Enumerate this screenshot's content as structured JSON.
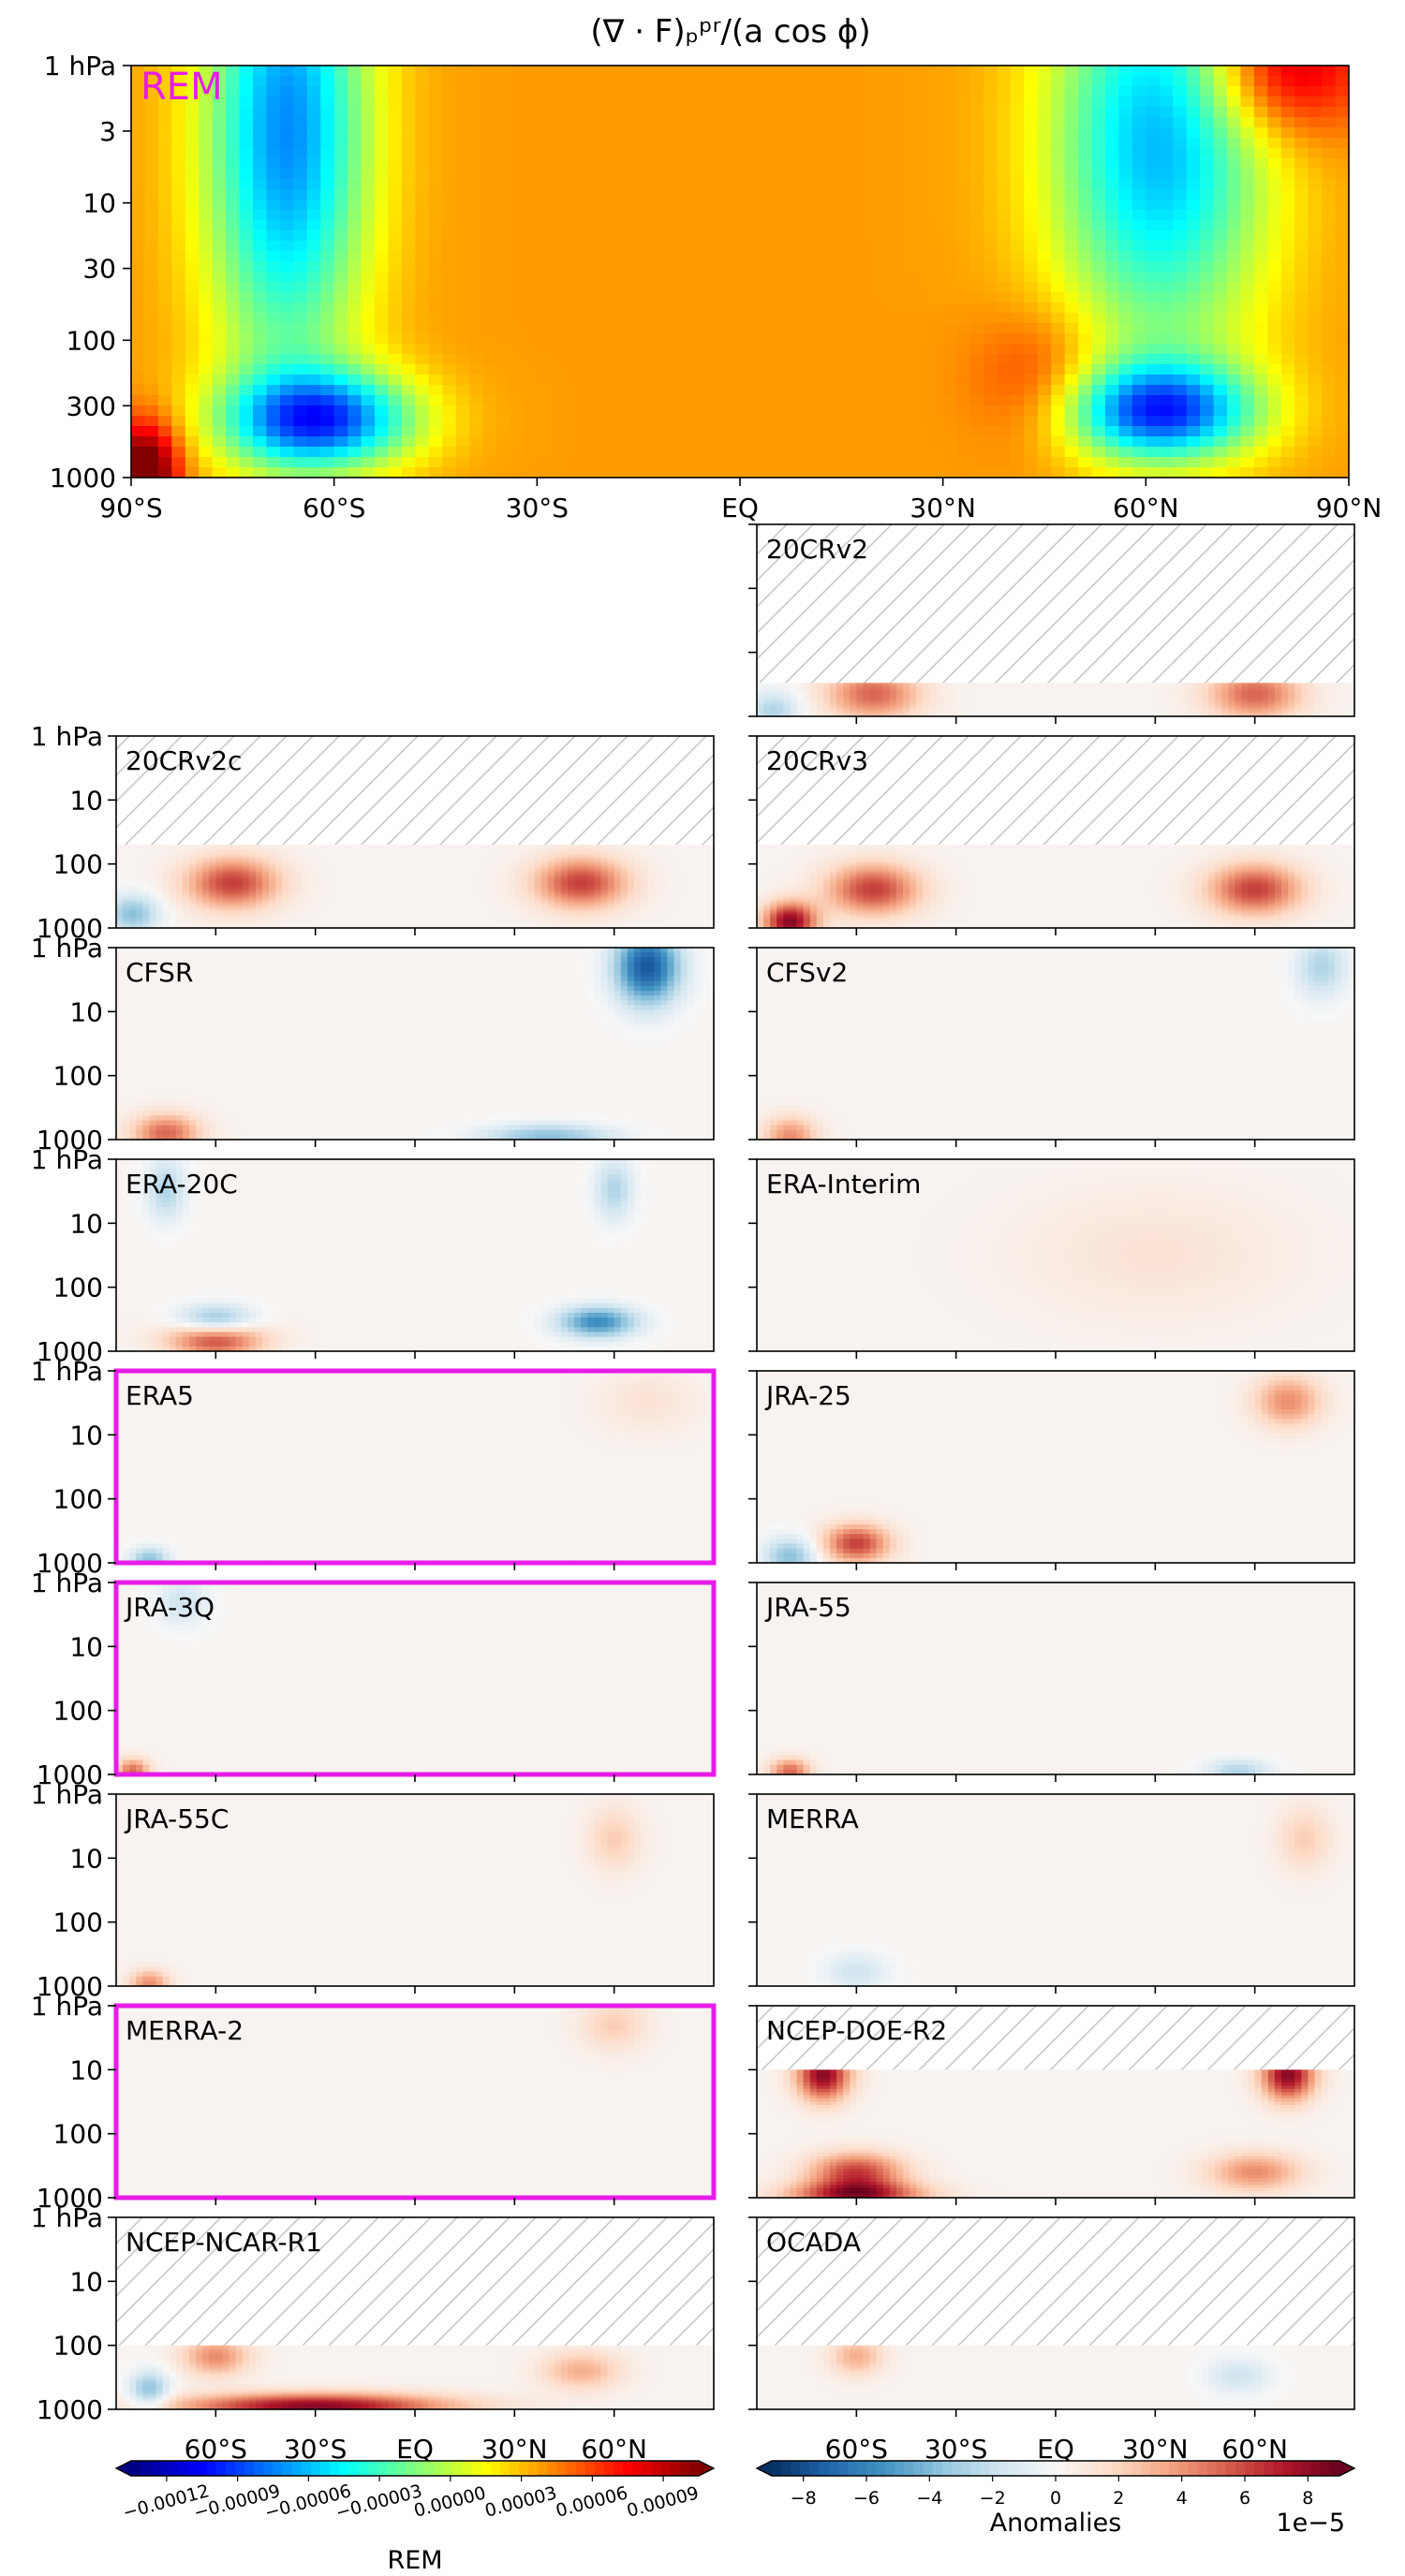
{
  "figure": {
    "title": "(∇ · F)ₚᵖʳ/(a cos ϕ)",
    "hatch_color": "#c8c8c8",
    "highlight_color": "#e81ce8"
  },
  "chart_data": [
    {
      "type": "heatmap",
      "id": "rem",
      "label": "REM",
      "label_color": "#e81ce8",
      "x_ticks": [
        "90°S",
        "60°S",
        "30°S",
        "EQ",
        "30°N",
        "60°N",
        "90°N"
      ],
      "x_tick_values": [
        -90,
        -60,
        -30,
        0,
        30,
        60,
        90
      ],
      "y_ticks": [
        "1 hPa",
        "3",
        "10",
        "30",
        "100",
        "300",
        "1000"
      ],
      "y_tick_values": [
        1,
        3,
        10,
        30,
        100,
        300,
        1000
      ],
      "y_scale": "log",
      "xlim": [
        -90,
        90
      ],
      "ylim": [
        1000,
        1
      ],
      "colormap": "jet",
      "features": [
        {
          "lat": -67,
          "p": 3,
          "value": -0.00011,
          "width": 12,
          "depth": 1.8
        },
        {
          "lat": 62,
          "p": 3.5,
          "value": -0.0001,
          "width": 16,
          "depth": 1.6
        },
        {
          "lat": -62,
          "p": 380,
          "value": -0.00012,
          "width": 14,
          "depth": 0.35
        },
        {
          "lat": 62,
          "p": 330,
          "value": -0.00012,
          "width": 14,
          "depth": 0.35
        },
        {
          "lat": -88,
          "p": 900,
          "value": 9e-05,
          "width": 5,
          "depth": 0.35
        },
        {
          "lat": 80,
          "p": 1,
          "value": 6e-05,
          "width": 12,
          "depth": 0.5
        },
        {
          "lat": 45,
          "p": 200,
          "value": 3e-05,
          "width": 10,
          "depth": 0.5
        }
      ]
    },
    {
      "type": "heatmap",
      "id": "20CRv2",
      "label": "20CRv2",
      "highlight": false,
      "top_p": 300,
      "features": [
        {
          "lat": -55,
          "p": 450,
          "value": 5,
          "width": 14,
          "depth": 0.4
        },
        {
          "lat": 60,
          "p": 450,
          "value": 5,
          "width": 14,
          "depth": 0.4
        },
        {
          "lat": -85,
          "p": 800,
          "value": -3,
          "width": 8,
          "depth": 0.3
        }
      ]
    },
    {
      "type": "heatmap",
      "id": "20CRv2c",
      "label": "20CRv2c",
      "highlight": false,
      "top_p": 50,
      "features": [
        {
          "lat": -55,
          "p": 200,
          "value": 6,
          "width": 14,
          "depth": 0.4
        },
        {
          "lat": 50,
          "p": 200,
          "value": 6,
          "width": 14,
          "depth": 0.4
        },
        {
          "lat": -85,
          "p": 600,
          "value": -4,
          "width": 8,
          "depth": 0.3
        }
      ]
    },
    {
      "type": "heatmap",
      "id": "20CRv3",
      "label": "20CRv3",
      "highlight": false,
      "top_p": 50,
      "features": [
        {
          "lat": -55,
          "p": 250,
          "value": 6,
          "width": 14,
          "depth": 0.4
        },
        {
          "lat": 60,
          "p": 250,
          "value": 6,
          "width": 14,
          "depth": 0.4
        },
        {
          "lat": -80,
          "p": 800,
          "value": 8,
          "width": 8,
          "depth": 0.3
        }
      ]
    },
    {
      "type": "heatmap",
      "id": "CFSR",
      "label": "CFSR",
      "highlight": false,
      "top_p": 1,
      "features": [
        {
          "lat": 70,
          "p": 2,
          "value": -8,
          "width": 10,
          "depth": 0.6
        },
        {
          "lat": -75,
          "p": 800,
          "value": 5,
          "width": 10,
          "depth": 0.3
        },
        {
          "lat": 40,
          "p": 900,
          "value": -4,
          "width": 20,
          "depth": 0.2
        }
      ]
    },
    {
      "type": "heatmap",
      "id": "CFSv2",
      "label": "CFSv2",
      "highlight": false,
      "top_p": 1,
      "features": [
        {
          "lat": 80,
          "p": 2,
          "value": -3,
          "width": 8,
          "depth": 0.5
        },
        {
          "lat": -80,
          "p": 900,
          "value": 4,
          "width": 8,
          "depth": 0.3
        }
      ]
    },
    {
      "type": "heatmap",
      "id": "ERA-20C",
      "label": "ERA-20C",
      "highlight": false,
      "top_p": 1,
      "features": [
        {
          "lat": -75,
          "p": 3,
          "value": -3,
          "width": 6,
          "depth": 0.5
        },
        {
          "lat": 60,
          "p": 3,
          "value": -3,
          "width": 6,
          "depth": 0.5
        },
        {
          "lat": -60,
          "p": 600,
          "value": 7,
          "width": 14,
          "depth": 0.3
        },
        {
          "lat": -60,
          "p": 350,
          "value": -6,
          "width": 12,
          "depth": 0.25
        },
        {
          "lat": 55,
          "p": 350,
          "value": -6,
          "width": 12,
          "depth": 0.25
        }
      ]
    },
    {
      "type": "heatmap",
      "id": "ERA-Interim",
      "label": "ERA-Interim",
      "highlight": false,
      "top_p": 1,
      "features": [
        {
          "lat": 30,
          "p": 30,
          "value": 1,
          "width": 40,
          "depth": 1.0
        }
      ]
    },
    {
      "type": "heatmap",
      "id": "ERA5",
      "label": "ERA5",
      "highlight": true,
      "top_p": 1,
      "features": [
        {
          "lat": -80,
          "p": 900,
          "value": -4,
          "width": 6,
          "depth": 0.2
        },
        {
          "lat": 70,
          "p": 3,
          "value": 1,
          "width": 15,
          "depth": 0.5
        }
      ]
    },
    {
      "type": "heatmap",
      "id": "JRA-25",
      "label": "JRA-25",
      "highlight": false,
      "top_p": 1,
      "features": [
        {
          "lat": 70,
          "p": 3,
          "value": 4,
          "width": 10,
          "depth": 0.4
        },
        {
          "lat": -60,
          "p": 500,
          "value": 6,
          "width": 10,
          "depth": 0.3
        },
        {
          "lat": -80,
          "p": 800,
          "value": -4,
          "width": 8,
          "depth": 0.3
        }
      ]
    },
    {
      "type": "heatmap",
      "id": "JRA-3Q",
      "label": "JRA-3Q",
      "highlight": true,
      "top_p": 1,
      "features": [
        {
          "lat": -85,
          "p": 900,
          "value": 5,
          "width": 5,
          "depth": 0.2
        },
        {
          "lat": -70,
          "p": 2,
          "value": -2,
          "width": 8,
          "depth": 0.4
        }
      ]
    },
    {
      "type": "heatmap",
      "id": "JRA-55",
      "label": "JRA-55",
      "highlight": false,
      "top_p": 1,
      "features": [
        {
          "lat": -80,
          "p": 900,
          "value": 5,
          "width": 6,
          "depth": 0.2
        },
        {
          "lat": 55,
          "p": 900,
          "value": -3,
          "width": 10,
          "depth": 0.2
        }
      ]
    },
    {
      "type": "heatmap",
      "id": "JRA-55C",
      "label": "JRA-55C",
      "highlight": false,
      "top_p": 1,
      "features": [
        {
          "lat": -80,
          "p": 900,
          "value": 4,
          "width": 6,
          "depth": 0.2
        },
        {
          "lat": 60,
          "p": 5,
          "value": 2,
          "width": 8,
          "depth": 0.5
        }
      ]
    },
    {
      "type": "heatmap",
      "id": "MERRA",
      "label": "MERRA",
      "highlight": false,
      "top_p": 1,
      "features": [
        {
          "lat": 75,
          "p": 5,
          "value": 2,
          "width": 8,
          "depth": 0.5
        },
        {
          "lat": -60,
          "p": 600,
          "value": -2,
          "width": 10,
          "depth": 0.3
        }
      ]
    },
    {
      "type": "heatmap",
      "id": "MERRA-2",
      "label": "MERRA-2",
      "highlight": true,
      "top_p": 1,
      "features": [
        {
          "lat": 60,
          "p": 2,
          "value": 2,
          "width": 10,
          "depth": 0.4
        }
      ]
    },
    {
      "type": "heatmap",
      "id": "NCEP-DOE-R2",
      "label": "NCEP-DOE-R2",
      "highlight": false,
      "top_p": 10,
      "features": [
        {
          "lat": -70,
          "p": 12,
          "value": 8,
          "width": 8,
          "depth": 0.4
        },
        {
          "lat": 70,
          "p": 12,
          "value": 8,
          "width": 8,
          "depth": 0.4
        },
        {
          "lat": -60,
          "p": 400,
          "value": 6,
          "width": 14,
          "depth": 0.3
        },
        {
          "lat": 60,
          "p": 400,
          "value": 4,
          "width": 14,
          "depth": 0.3
        },
        {
          "lat": -60,
          "p": 900,
          "value": 7,
          "width": 20,
          "depth": 0.2
        }
      ]
    },
    {
      "type": "heatmap",
      "id": "NCEP-NCAR-R1",
      "label": "NCEP-NCAR-R1",
      "highlight": false,
      "top_p": 100,
      "features": [
        {
          "lat": -60,
          "p": 150,
          "value": 4,
          "width": 10,
          "depth": 0.3
        },
        {
          "lat": 50,
          "p": 250,
          "value": 3,
          "width": 12,
          "depth": 0.3
        },
        {
          "lat": -30,
          "p": 900,
          "value": 8,
          "width": 40,
          "depth": 0.2
        },
        {
          "lat": -80,
          "p": 500,
          "value": -4,
          "width": 6,
          "depth": 0.3
        }
      ]
    },
    {
      "type": "heatmap",
      "id": "OCADA",
      "label": "OCADA",
      "highlight": false,
      "top_p": 100,
      "features": [
        {
          "lat": -60,
          "p": 150,
          "value": 3,
          "width": 8,
          "depth": 0.3
        },
        {
          "lat": 55,
          "p": 300,
          "value": -2,
          "width": 10,
          "depth": 0.3
        }
      ]
    }
  ],
  "small_axes": {
    "y_ticks": [
      "1 hPa",
      "10",
      "100",
      "1000"
    ],
    "y_tick_values": [
      1,
      10,
      100,
      1000
    ],
    "x_ticks": [
      "60°S",
      "30°S",
      "EQ",
      "30°N",
      "60°N"
    ],
    "x_tick_values": [
      -60,
      -30,
      0,
      30,
      60
    ]
  },
  "colorbar_rem": {
    "label": "REM",
    "colormap": "jet",
    "range": [
      -0.000135,
      0.000105
    ],
    "ticks": [
      "−0.00012",
      "−0.00009",
      "−0.00006",
      "−0.00003",
      "0.00000",
      "0.00003",
      "0.00006",
      "0.00009"
    ],
    "tick_values": [
      -0.00012,
      -9e-05,
      -6e-05,
      -3e-05,
      0,
      3e-05,
      6e-05,
      9e-05
    ]
  },
  "colorbar_anom": {
    "label": "Anomalies",
    "scale_label": "1e−5",
    "colormap": "RdBu_r",
    "range": [
      -9,
      9
    ],
    "ticks": [
      "−8",
      "−6",
      "−4",
      "−2",
      "0",
      "2",
      "4",
      "6",
      "8"
    ],
    "tick_values": [
      -8,
      -6,
      -4,
      -2,
      0,
      2,
      4,
      6,
      8
    ]
  }
}
